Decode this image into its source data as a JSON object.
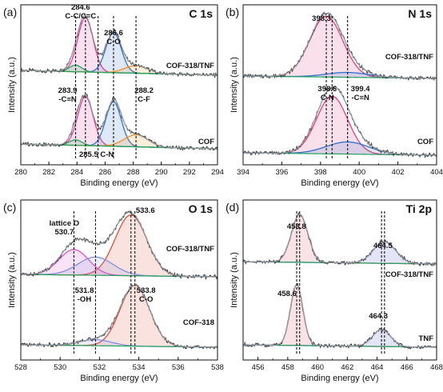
{
  "chart_data": [
    {
      "type": "line",
      "panel": "(a)",
      "title": "C 1s",
      "xlabel": "Binding energy (eV)",
      "ylabel": "Intensity (a.u.)",
      "xlim": [
        280,
        294
      ],
      "xticks": [
        280,
        282,
        284,
        286,
        288,
        290,
        292,
        294
      ],
      "ylim": [
        0,
        1
      ],
      "spectra": [
        {
          "name": "COF-318/TNF",
          "baseline": 0.56,
          "amp": 0.34,
          "peaks": [
            {
              "center": 284.6,
              "height": 1.0,
              "width": 0.55,
              "color": "#e6409a"
            },
            {
              "center": 286.6,
              "height": 0.74,
              "width": 0.55,
              "color": "#2f6fd0"
            },
            {
              "center": 283.9,
              "height": 0.12,
              "width": 0.45,
              "color": "#22a35a"
            },
            {
              "center": 288.2,
              "height": 0.14,
              "width": 0.8,
              "color": "#f09020"
            }
          ]
        },
        {
          "name": "COF",
          "baseline": 0.1,
          "amp": 0.34,
          "peaks": [
            {
              "center": 284.6,
              "height": 0.9,
              "width": 0.55,
              "color": "#e6409a"
            },
            {
              "center": 286.6,
              "height": 0.82,
              "width": 0.55,
              "color": "#2f6fd0"
            },
            {
              "center": 283.9,
              "height": 0.1,
              "width": 0.45,
              "color": "#22a35a"
            },
            {
              "center": 288.2,
              "height": 0.22,
              "width": 0.85,
              "color": "#f09020"
            }
          ]
        }
      ],
      "annotations": [
        {
          "x": 284.6,
          "lines": [
            "284.6",
            "C-C/C=C"
          ]
        },
        {
          "x": 286.6,
          "lines": [
            "286.6",
            "C-O"
          ]
        },
        {
          "x": 283.9,
          "lines": [
            "283.9",
            "-C≡N"
          ]
        },
        {
          "x": 288.2,
          "lines": [
            "288.2",
            "C-F"
          ]
        },
        {
          "x": 285.5,
          "lines": [
            "285.5 C-N"
          ]
        }
      ],
      "dashed_lines": [
        283.9,
        284.6,
        285.5,
        286.6,
        288.2
      ]
    },
    {
      "type": "line",
      "panel": "(b)",
      "title": "N 1s",
      "xlabel": "Binding energy (eV)",
      "ylabel": "Intensity (a.u.)",
      "xlim": [
        394,
        404
      ],
      "xticks": [
        394,
        396,
        398,
        400,
        402,
        404
      ],
      "ylim": [
        0,
        1
      ],
      "spectra": [
        {
          "name": "COF-318/TNF",
          "baseline": 0.54,
          "amp": 0.38,
          "peaks": [
            {
              "center": 398.3,
              "height": 1.0,
              "width": 0.85,
              "color": "#e0407a"
            },
            {
              "center": 399.4,
              "height": 0.08,
              "width": 1.1,
              "color": "#2f6fd0"
            }
          ]
        },
        {
          "name": "COF",
          "baseline": 0.06,
          "amp": 0.38,
          "peaks": [
            {
              "center": 398.6,
              "height": 0.95,
              "width": 0.8,
              "color": "#e0407a"
            },
            {
              "center": 399.4,
              "height": 0.2,
              "width": 1.1,
              "color": "#2f6fd0"
            }
          ]
        }
      ],
      "annotations": [
        {
          "x": 398.3,
          "lines": [
            "398.3"
          ]
        },
        {
          "x": 398.6,
          "lines": [
            "398.6",
            "C-N"
          ]
        },
        {
          "x": 399.4,
          "lines": [
            "399.4",
            "-C≡N"
          ]
        }
      ],
      "dashed_lines": [
        398.3,
        398.6,
        399.4
      ]
    },
    {
      "type": "line",
      "panel": "(c)",
      "title": "O 1s",
      "xlabel": "Binding energy (eV)",
      "ylabel": "Intensity (a.u.)",
      "xlim": [
        528,
        538
      ],
      "xticks": [
        528,
        530,
        532,
        534,
        536,
        538
      ],
      "ylim": [
        0,
        1
      ],
      "spectra": [
        {
          "name": "COF-318/TNF",
          "baseline": 0.52,
          "amp": 0.38,
          "peaks": [
            {
              "center": 533.6,
              "height": 1.0,
              "width": 0.8,
              "color": "#e0503a"
            },
            {
              "center": 530.7,
              "height": 0.42,
              "width": 0.75,
              "color": "#e050c8"
            },
            {
              "center": 531.8,
              "height": 0.3,
              "width": 0.9,
              "color": "#8090e0"
            }
          ]
        },
        {
          "name": "COF-318",
          "baseline": 0.08,
          "amp": 0.38,
          "peaks": [
            {
              "center": 533.8,
              "height": 1.0,
              "width": 0.75,
              "color": "#e0503a"
            },
            {
              "center": 531.8,
              "height": 0.1,
              "width": 0.8,
              "color": "#8090e0"
            }
          ]
        }
      ],
      "annotations": [
        {
          "x": 533.6,
          "lines": [
            "533.6"
          ]
        },
        {
          "x": 530.7,
          "lines": [
            "lattice O",
            "530.7"
          ]
        },
        {
          "x": 531.8,
          "lines": [
            "531.8",
            "-OH"
          ]
        },
        {
          "x": 533.8,
          "lines": [
            "533.8",
            "C-O"
          ]
        }
      ],
      "dashed_lines": [
        530.7,
        531.8,
        533.6,
        533.8
      ]
    },
    {
      "type": "line",
      "panel": "(d)",
      "title": "Ti 2p",
      "xlabel": "Binding energy (eV)",
      "ylabel": "Intensity (a.u.)",
      "xlim": [
        455,
        468
      ],
      "xticks": [
        456,
        458,
        460,
        462,
        464,
        466,
        468
      ],
      "ylim": [
        0,
        1
      ],
      "spectra": [
        {
          "name": "COF-318/TNF",
          "baseline": 0.6,
          "amp": 0.3,
          "peaks": [
            {
              "center": 458.8,
              "height": 1.0,
              "width": 0.55,
              "color": "#e0506a"
            },
            {
              "center": 464.5,
              "height": 0.45,
              "width": 0.75,
              "color": "#5060d0"
            }
          ]
        },
        {
          "name": "TNF",
          "baseline": 0.08,
          "amp": 0.38,
          "peaks": [
            {
              "center": 458.6,
              "height": 1.0,
              "width": 0.42,
              "color": "#e0506a"
            },
            {
              "center": 464.3,
              "height": 0.28,
              "width": 0.6,
              "color": "#5060d0"
            }
          ]
        }
      ],
      "annotations": [
        {
          "x": 458.8,
          "lines": [
            "458.8"
          ]
        },
        {
          "x": 464.5,
          "lines": [
            "464.5"
          ]
        },
        {
          "x": 458.6,
          "lines": [
            "458.6"
          ]
        },
        {
          "x": 464.3,
          "lines": [
            "464.3"
          ]
        }
      ],
      "dashed_lines": [
        458.6,
        458.8,
        464.3,
        464.5
      ]
    }
  ],
  "colors": {
    "data_line": "#3a3a3a",
    "envelope": "#9aa0a8",
    "background_fit": "#22a35a"
  }
}
